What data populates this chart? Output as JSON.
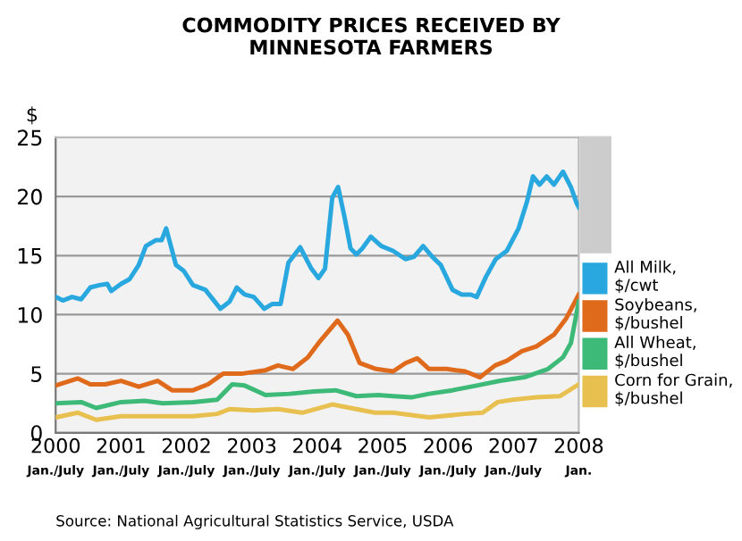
{
  "chart_data": {
    "type": "line",
    "title": "COMMODITY PRICES RECEIVED BY\nMINNESOTA FARMERS",
    "ylabel": "$",
    "xlim": [
      2000,
      2008
    ],
    "ylim": [
      0,
      25
    ],
    "yticks": [
      0,
      5,
      10,
      15,
      20,
      25
    ],
    "xticks": [
      2000,
      2001,
      2002,
      2003,
      2004,
      2005,
      2006,
      2007,
      2008
    ],
    "grid": "y",
    "legend": "right",
    "marker": "none",
    "line_style": "solid",
    "annotations": [
      "Source: National Agricultural Statistics Service, USDA",
      "Jan./July",
      "Jan./July",
      "Jan./July",
      "Jan./July",
      "Jan./July",
      "Jan./July",
      "Jan./July",
      "Jan./July",
      "Jan."
    ],
    "series": [
      {
        "name": "All Milk,\n$/cwt",
        "color": "#29a8e0",
        "x": [
          2000.0,
          2000.11,
          2000.25,
          2000.39,
          2000.53,
          2000.67,
          2000.79,
          2000.85,
          2001.0,
          2001.13,
          2001.27,
          2001.38,
          2001.53,
          2001.62,
          2001.69,
          2001.84,
          2001.96,
          2002.1,
          2002.29,
          2002.52,
          2002.66,
          2002.77,
          2002.89,
          2003.03,
          2003.19,
          2003.31,
          2003.44,
          2003.56,
          2003.74,
          2003.91,
          2004.02,
          2004.12,
          2004.23,
          2004.32,
          2004.42,
          2004.51,
          2004.6,
          2004.69,
          2004.82,
          2004.98,
          2005.16,
          2005.35,
          2005.48,
          2005.62,
          2005.76,
          2005.89,
          2006.07,
          2006.21,
          2006.35,
          2006.44,
          2006.58,
          2006.73,
          2006.9,
          2007.08,
          2007.21,
          2007.3,
          2007.4,
          2007.51,
          2007.62,
          2007.76,
          2007.88,
          2007.97,
          2008.0
        ],
        "values": [
          11.5,
          11.2,
          11.5,
          11.3,
          12.3,
          12.5,
          12.6,
          12.0,
          12.6,
          13.0,
          14.2,
          15.8,
          16.3,
          16.3,
          17.3,
          14.2,
          13.7,
          12.5,
          12.1,
          10.5,
          11.1,
          12.3,
          11.7,
          11.5,
          10.5,
          10.9,
          10.9,
          14.4,
          15.7,
          13.9,
          13.1,
          13.9,
          19.9,
          20.8,
          18.2,
          15.6,
          15.1,
          15.6,
          16.6,
          15.8,
          15.4,
          14.7,
          14.9,
          15.8,
          14.9,
          14.2,
          12.1,
          11.7,
          11.7,
          11.5,
          13.2,
          14.7,
          15.4,
          17.3,
          19.6,
          21.7,
          21.0,
          21.7,
          21.0,
          22.1,
          20.8,
          19.4,
          19.1
        ]
      },
      {
        "name": "Soybeans,\n$/bushel",
        "color": "#e06a1c",
        "x": [
          2000.0,
          2000.34,
          2000.53,
          2000.76,
          2001.0,
          2001.27,
          2001.56,
          2001.78,
          2002.1,
          2002.33,
          2002.56,
          2002.84,
          2003.21,
          2003.4,
          2003.63,
          2003.86,
          2004.05,
          2004.31,
          2004.47,
          2004.65,
          2004.9,
          2005.16,
          2005.35,
          2005.53,
          2005.71,
          2005.98,
          2006.26,
          2006.49,
          2006.72,
          2006.9,
          2007.13,
          2007.35,
          2007.62,
          2007.81,
          2008.0
        ],
        "values": [
          4.0,
          4.6,
          4.1,
          4.1,
          4.4,
          3.9,
          4.4,
          3.6,
          3.6,
          4.1,
          5.0,
          5.0,
          5.3,
          5.7,
          5.4,
          6.4,
          7.8,
          9.5,
          8.3,
          5.9,
          5.4,
          5.2,
          5.9,
          6.3,
          5.4,
          5.4,
          5.2,
          4.7,
          5.7,
          6.1,
          6.9,
          7.3,
          8.3,
          9.7,
          11.7
        ]
      },
      {
        "name": "All Wheat,\n$/bushel",
        "color": "#3dba78",
        "x": [
          2000.0,
          2000.39,
          2000.62,
          2001.0,
          2001.36,
          2001.64,
          2002.1,
          2002.47,
          2002.7,
          2002.89,
          2003.21,
          2003.58,
          2003.95,
          2004.28,
          2004.6,
          2004.93,
          2005.16,
          2005.44,
          2005.71,
          2006.07,
          2006.44,
          2006.8,
          2007.17,
          2007.53,
          2007.76,
          2007.88,
          2008.0
        ],
        "values": [
          2.5,
          2.6,
          2.1,
          2.6,
          2.7,
          2.5,
          2.6,
          2.8,
          4.1,
          4.0,
          3.2,
          3.3,
          3.5,
          3.6,
          3.1,
          3.2,
          3.1,
          3.0,
          3.3,
          3.6,
          4.0,
          4.4,
          4.7,
          5.4,
          6.4,
          7.6,
          11.1
        ]
      },
      {
        "name": "Corn for Grain,\n$/bushel",
        "color": "#e8c050",
        "x": [
          2000.0,
          2000.34,
          2000.62,
          2001.0,
          2001.55,
          2002.1,
          2002.47,
          2002.66,
          2003.03,
          2003.4,
          2003.77,
          2004.23,
          2004.51,
          2004.88,
          2005.16,
          2005.71,
          2006.26,
          2006.53,
          2006.76,
          2006.99,
          2007.35,
          2007.71,
          2008.0
        ],
        "values": [
          1.3,
          1.7,
          1.1,
          1.4,
          1.4,
          1.4,
          1.6,
          2.0,
          1.9,
          2.0,
          1.7,
          2.4,
          2.1,
          1.7,
          1.7,
          1.3,
          1.6,
          1.7,
          2.6,
          2.8,
          3.0,
          3.1,
          4.1
        ]
      }
    ]
  }
}
